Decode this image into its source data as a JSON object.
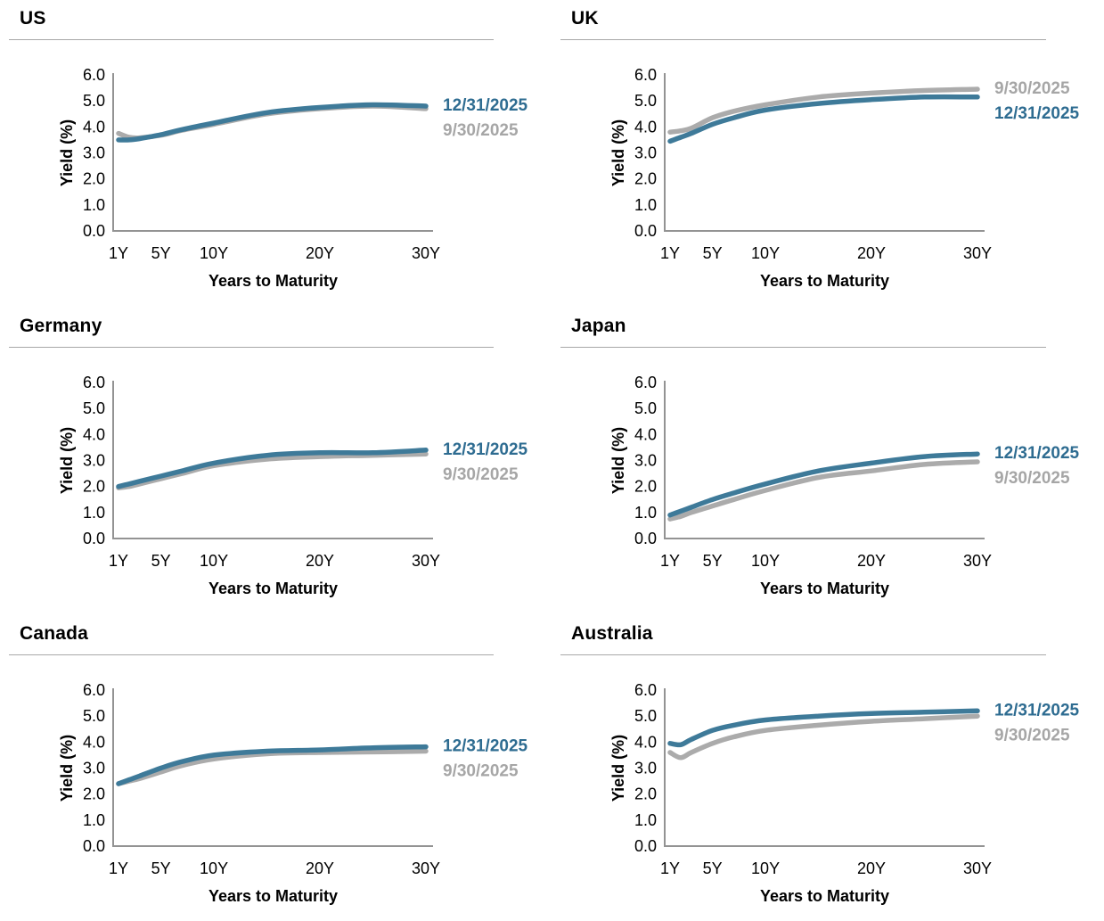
{
  "colors": {
    "dec_line": "#3E7A99",
    "dec_text": "#2E6C91",
    "sep_line": "#ABABAB",
    "sep_text": "#A6A6A6",
    "axis_line": "#939393",
    "tick_text": "#000000",
    "rule": "#A8A8A8",
    "background": "#FFFFFF"
  },
  "series_labels": {
    "dec": "12/31/2025",
    "sep": "9/30/2025"
  },
  "axis": {
    "ylabel": "Yield (%)",
    "xlabel": "Years to Maturity",
    "yticks": [
      "6.0",
      "5.0",
      "4.0",
      "3.0",
      "2.0",
      "1.0",
      "0.0"
    ],
    "xticks": [
      {
        "year": 1,
        "label": "1Y"
      },
      {
        "year": 5,
        "label": "5Y"
      },
      {
        "year": 10,
        "label": "10Y"
      },
      {
        "year": 20,
        "label": "20Y"
      },
      {
        "year": 30,
        "label": "30Y"
      }
    ],
    "ylim": [
      0,
      6
    ],
    "grid": "off",
    "legend_position": "right-of-curve-end"
  },
  "chart_data": [
    {
      "type": "line",
      "title": "US",
      "xlabel": "Years to Maturity",
      "ylabel": "Yield (%)",
      "ylim": [
        0,
        6
      ],
      "x_years": [
        1,
        2,
        3,
        5,
        7,
        10,
        15,
        20,
        25,
        30
      ],
      "legend_order": [
        "dec",
        "sep"
      ],
      "series": [
        {
          "key": "dec",
          "name": "12/31/2025",
          "values": [
            3.5,
            3.5,
            3.55,
            3.7,
            3.9,
            4.15,
            4.55,
            4.75,
            4.85,
            4.8
          ]
        },
        {
          "key": "sep",
          "name": "9/30/2025",
          "values": [
            3.75,
            3.6,
            3.58,
            3.68,
            3.87,
            4.1,
            4.5,
            4.7,
            4.8,
            4.7
          ]
        }
      ]
    },
    {
      "type": "line",
      "title": "UK",
      "xlabel": "Years to Maturity",
      "ylabel": "Yield (%)",
      "ylim": [
        0,
        6
      ],
      "x_years": [
        1,
        2,
        3,
        5,
        7,
        10,
        15,
        20,
        25,
        30
      ],
      "legend_order": [
        "sep",
        "dec"
      ],
      "series": [
        {
          "key": "dec",
          "name": "12/31/2025",
          "values": [
            3.45,
            3.6,
            3.75,
            4.1,
            4.35,
            4.65,
            4.9,
            5.05,
            5.15,
            5.15
          ]
        },
        {
          "key": "sep",
          "name": "9/30/2025",
          "values": [
            3.8,
            3.85,
            3.95,
            4.35,
            4.6,
            4.85,
            5.15,
            5.3,
            5.4,
            5.45
          ]
        }
      ]
    },
    {
      "type": "line",
      "title": "Germany",
      "xlabel": "Years to Maturity",
      "ylabel": "Yield (%)",
      "ylim": [
        0,
        6
      ],
      "x_years": [
        1,
        2,
        3,
        5,
        7,
        10,
        15,
        20,
        25,
        30
      ],
      "legend_order": [
        "dec",
        "sep"
      ],
      "series": [
        {
          "key": "dec",
          "name": "12/31/2025",
          "values": [
            2.0,
            2.1,
            2.2,
            2.4,
            2.6,
            2.9,
            3.2,
            3.3,
            3.3,
            3.4
          ]
        },
        {
          "key": "sep",
          "name": "9/30/2025",
          "values": [
            1.95,
            2.0,
            2.1,
            2.3,
            2.5,
            2.8,
            3.05,
            3.15,
            3.2,
            3.25
          ]
        }
      ]
    },
    {
      "type": "line",
      "title": "Japan",
      "xlabel": "Years to Maturity",
      "ylabel": "Yield (%)",
      "ylim": [
        0,
        6
      ],
      "x_years": [
        1,
        2,
        3,
        5,
        7,
        10,
        15,
        20,
        25,
        30
      ],
      "legend_order": [
        "dec",
        "sep"
      ],
      "series": [
        {
          "key": "dec",
          "name": "12/31/2025",
          "values": [
            0.9,
            1.05,
            1.2,
            1.5,
            1.75,
            2.1,
            2.6,
            2.9,
            3.15,
            3.25
          ]
        },
        {
          "key": "sep",
          "name": "9/30/2025",
          "values": [
            0.75,
            0.85,
            1.0,
            1.25,
            1.5,
            1.85,
            2.35,
            2.6,
            2.85,
            2.95
          ]
        }
      ]
    },
    {
      "type": "line",
      "title": "Canada",
      "xlabel": "Years to Maturity",
      "ylabel": "Yield (%)",
      "ylim": [
        0,
        6
      ],
      "x_years": [
        1,
        2,
        3,
        5,
        7,
        10,
        15,
        20,
        25,
        30
      ],
      "legend_order": [
        "dec",
        "sep"
      ],
      "series": [
        {
          "key": "dec",
          "name": "12/31/2025",
          "values": [
            2.4,
            2.55,
            2.7,
            3.0,
            3.25,
            3.5,
            3.65,
            3.7,
            3.78,
            3.82
          ]
        },
        {
          "key": "sep",
          "name": "9/30/2025",
          "values": [
            2.4,
            2.5,
            2.6,
            2.85,
            3.1,
            3.35,
            3.55,
            3.6,
            3.62,
            3.65
          ]
        }
      ]
    },
    {
      "type": "line",
      "title": "Australia",
      "xlabel": "Years to Maturity",
      "ylabel": "Yield (%)",
      "ylim": [
        0,
        6
      ],
      "x_years": [
        1,
        2,
        3,
        5,
        7,
        10,
        15,
        20,
        25,
        30
      ],
      "legend_order": [
        "dec",
        "sep"
      ],
      "series": [
        {
          "key": "dec",
          "name": "12/31/2025",
          "values": [
            3.95,
            3.9,
            4.1,
            4.45,
            4.65,
            4.85,
            5.0,
            5.1,
            5.15,
            5.2
          ]
        },
        {
          "key": "sep",
          "name": "9/30/2025",
          "values": [
            3.6,
            3.4,
            3.6,
            3.95,
            4.2,
            4.45,
            4.65,
            4.8,
            4.9,
            5.0
          ]
        }
      ]
    }
  ]
}
